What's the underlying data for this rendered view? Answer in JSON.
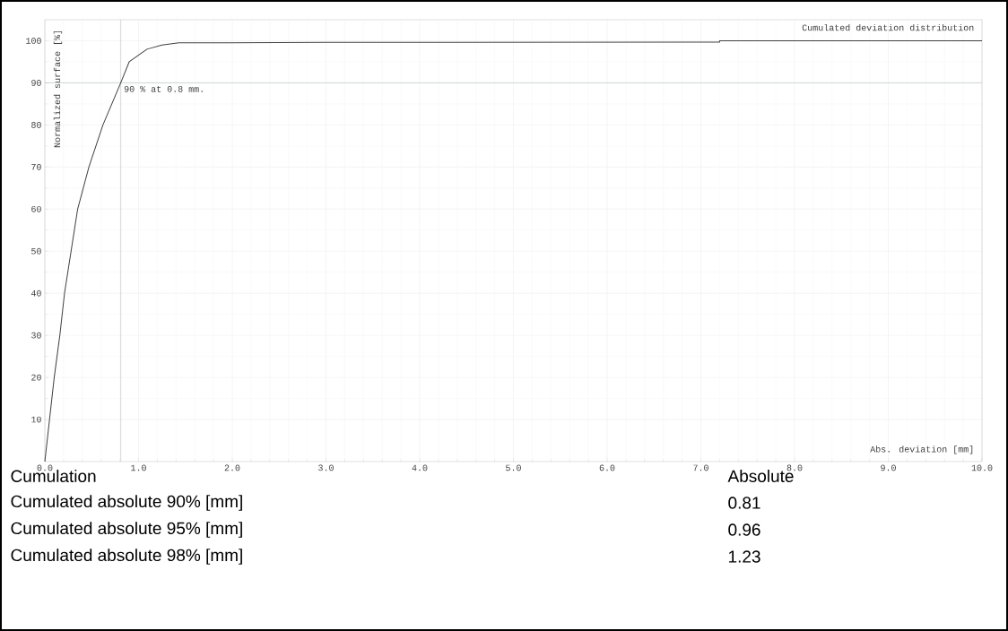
{
  "chart_data": {
    "type": "line",
    "title": "Cumulated deviation distribution",
    "xlabel": "Abs. deviation [mm]",
    "ylabel": "Normalized surface [%]",
    "x": [
      0,
      0.05,
      0.1,
      0.16,
      0.21,
      0.28,
      0.35,
      0.47,
      0.62,
      0.81,
      0.9,
      1.09,
      1.25,
      1.43,
      3,
      7.2,
      7.2,
      10
    ],
    "series": [
      {
        "color": "#404040",
        "values": [
          0,
          10,
          20,
          30,
          40,
          50,
          60,
          70,
          80,
          90,
          95,
          98,
          99,
          99.5,
          99.6,
          99.7,
          100,
          100
        ]
      }
    ],
    "xlim": [
      0,
      10
    ],
    "ylim": [
      0,
      105
    ],
    "xticks": [
      {
        "value": 0,
        "label": "0.0"
      },
      {
        "value": 1,
        "label": "1.0"
      },
      {
        "value": 2,
        "label": "2.0"
      },
      {
        "value": 3,
        "label": "3.0"
      },
      {
        "value": 4,
        "label": "4.0"
      },
      {
        "value": 5,
        "label": "5.0"
      },
      {
        "value": 6,
        "label": "6.0"
      },
      {
        "value": 7,
        "label": "7.0"
      },
      {
        "value": 8,
        "label": "8.0"
      },
      {
        "value": 9,
        "label": "9.0"
      },
      {
        "value": 10,
        "label": "10.0"
      }
    ],
    "yticks": [
      10,
      20,
      30,
      40,
      50,
      60,
      70,
      80,
      90,
      100
    ],
    "grid": true,
    "ref_lines": [
      {
        "axis": "x",
        "value": 0.81,
        "color": "#8fa898"
      },
      {
        "axis": "y",
        "value": 90,
        "color": "#8fa898"
      }
    ],
    "annotations": [
      {
        "text": "90 % at 0.8 mm.",
        "x": 0.81,
        "y": 90
      },
      "Cumulation",
      "Absolute",
      "Cumulated absolute 90% [mm]",
      "0.81",
      "Cumulated absolute 95% [mm]",
      "0.96",
      "Cumulated absolute 98% [mm]",
      "1.23"
    ]
  }
}
